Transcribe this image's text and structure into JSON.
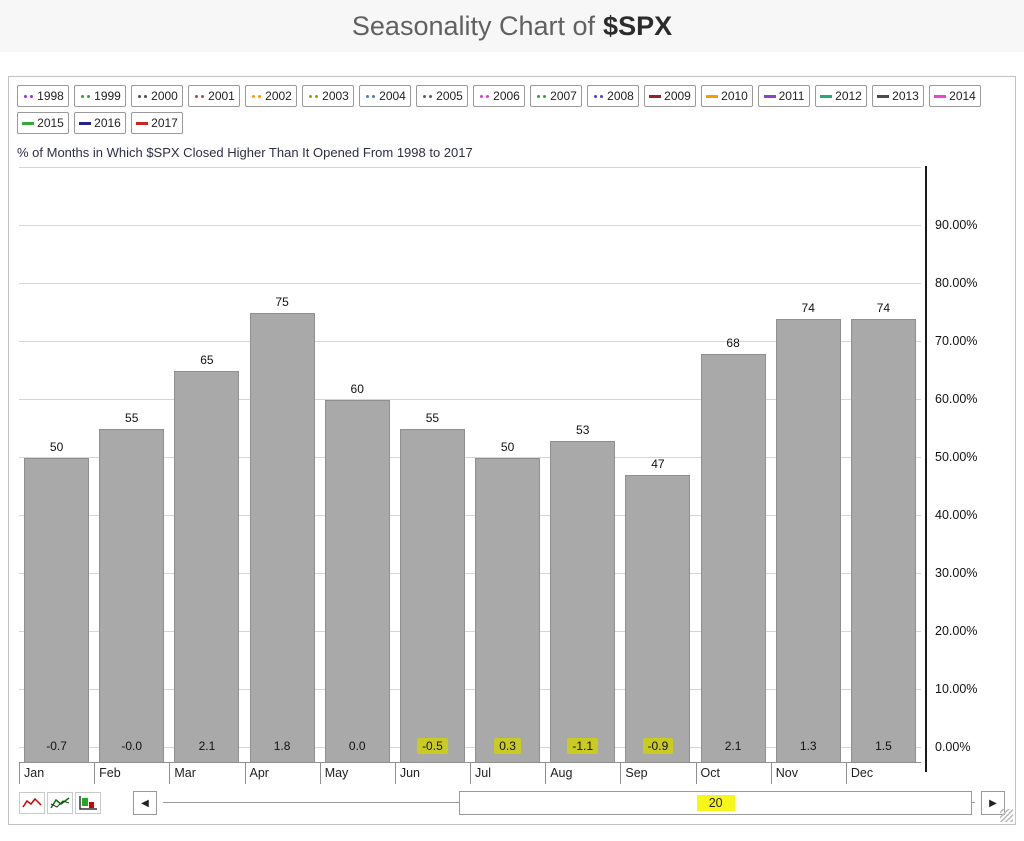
{
  "title": {
    "prefix": "Seasonality Chart of",
    "symbol": "$SPX"
  },
  "legend": {
    "years": [
      {
        "label": "1998",
        "marker": "dots",
        "color": "#9933cc"
      },
      {
        "label": "1999",
        "marker": "dots",
        "color": "#33a133"
      },
      {
        "label": "2000",
        "marker": "dots",
        "color": "#4d4d4d"
      },
      {
        "label": "2001",
        "marker": "dots",
        "color": "#a05050"
      },
      {
        "label": "2002",
        "marker": "dots",
        "color": "#ff9900"
      },
      {
        "label": "2003",
        "marker": "dots",
        "color": "#a0a000"
      },
      {
        "label": "2004",
        "marker": "dots",
        "color": "#4d79c7"
      },
      {
        "label": "2005",
        "marker": "dots",
        "color": "#5c5c5c"
      },
      {
        "label": "2006",
        "marker": "dots",
        "color": "#cc44cc"
      },
      {
        "label": "2007",
        "marker": "dots",
        "color": "#22aa22"
      },
      {
        "label": "2008",
        "marker": "dots",
        "color": "#4444cc"
      },
      {
        "label": "2009",
        "marker": "dash",
        "color": "#992222"
      },
      {
        "label": "2010",
        "marker": "dash",
        "color": "#ff9900"
      },
      {
        "label": "2011",
        "marker": "dash",
        "color": "#8844cc"
      },
      {
        "label": "2012",
        "marker": "dash",
        "color": "#22aa77"
      },
      {
        "label": "2013",
        "marker": "dash",
        "color": "#4d4d4d"
      },
      {
        "label": "2014",
        "marker": "dash",
        "color": "#ee44cc"
      },
      {
        "label": "2015",
        "marker": "dash",
        "color": "#33aa33"
      },
      {
        "label": "2016",
        "marker": "dash",
        "color": "#222288"
      },
      {
        "label": "2017",
        "marker": "dash",
        "color": "#cc2222"
      }
    ]
  },
  "subtitle": "% of Months in Which $SPX Closed Higher Than It Opened From 1998 to 2017",
  "chart_data": {
    "type": "bar",
    "categories": [
      "Jan",
      "Feb",
      "Mar",
      "Apr",
      "May",
      "Jun",
      "Jul",
      "Aug",
      "Sep",
      "Oct",
      "Nov",
      "Dec"
    ],
    "values": [
      50,
      55,
      65,
      75,
      60,
      55,
      50,
      53,
      47,
      68,
      74,
      74
    ],
    "avg_change_labels": [
      "-0.7",
      "-0.0",
      "2.1",
      "1.8",
      "0.0",
      "-0.5",
      "0.3",
      "-1.1",
      "-0.9",
      "2.1",
      "1.3",
      "1.5"
    ],
    "avg_change_highlighted": [
      false,
      false,
      false,
      false,
      false,
      true,
      true,
      true,
      true,
      false,
      false,
      false
    ],
    "y_tick_labels": [
      "0.00%",
      "10.00%",
      "20.00%",
      "30.00%",
      "40.00%",
      "50.00%",
      "60.00%",
      "70.00%",
      "80.00%",
      "90.00%"
    ],
    "ylim": [
      0,
      100
    ],
    "grid": true,
    "y_axis_position": "right",
    "bar_color": "#a9a9a9",
    "bar_border_color": "#8f8f8f",
    "highlight_color": "#c9cb22"
  },
  "toolbar": {
    "icons": [
      "line-chart-red-icon",
      "line-chart-green-icon",
      "bar-chart-icon"
    ],
    "left_arrow": "◀",
    "right_arrow": "▶",
    "slider_value": "20",
    "slider_value_highlight": "#f6f619"
  }
}
